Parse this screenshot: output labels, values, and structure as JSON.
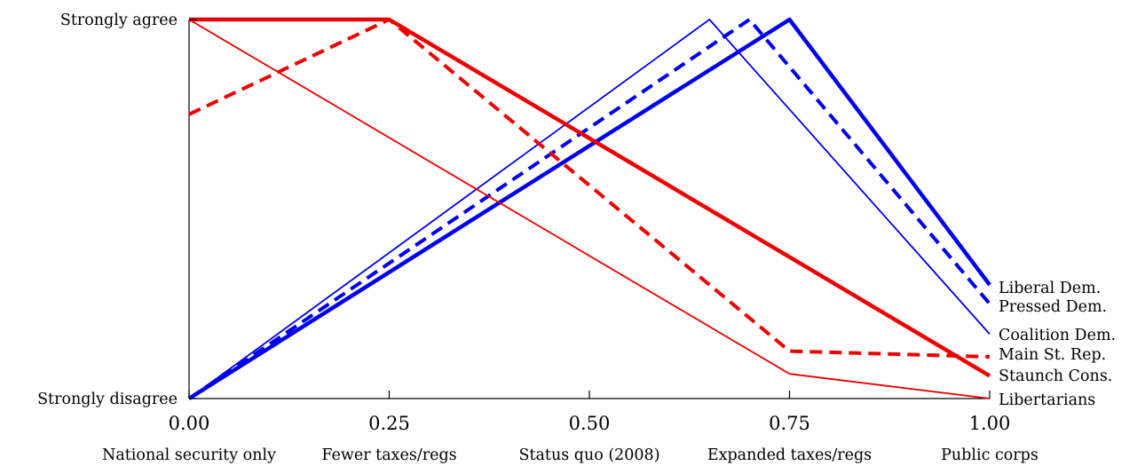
{
  "chart_data": {
    "type": "line",
    "x_ticks": [
      "0.00",
      "0.25",
      "0.50",
      "0.75",
      "1.00"
    ],
    "x_tick_values": [
      0,
      0.25,
      0.5,
      0.75,
      1
    ],
    "x_categories": [
      "National security only",
      "Fewer taxes/regs",
      "Status quo (2008)",
      "Expanded taxes/regs",
      "Public corps"
    ],
    "y_tick_labels": [
      "Strongly disagree",
      "Strongly agree"
    ],
    "y_tick_values": [
      0,
      1
    ],
    "xlim": [
      0,
      1
    ],
    "ylim": [
      0,
      1
    ],
    "grid": false,
    "series": [
      {
        "name": "Liberal Dem.",
        "color": "#0000ee",
        "style": "thick-solid",
        "points": [
          [
            0,
            0
          ],
          [
            0.75,
            1
          ],
          [
            1,
            0.3
          ]
        ]
      },
      {
        "name": "Pressed Dem.",
        "color": "#0000ee",
        "style": "dashed",
        "points": [
          [
            0,
            0
          ],
          [
            0.7,
            1
          ],
          [
            1,
            0.25
          ]
        ]
      },
      {
        "name": "Coalition Dem.",
        "color": "#0000ee",
        "style": "thin-solid",
        "points": [
          [
            0,
            0
          ],
          [
            0.65,
            1
          ],
          [
            1,
            0.17
          ]
        ]
      },
      {
        "name": "Main St. Rep.",
        "color": "#ee0000",
        "style": "dashed",
        "points": [
          [
            0,
            0.75
          ],
          [
            0.25,
            1
          ],
          [
            0.75,
            0.125
          ],
          [
            1,
            0.11
          ]
        ]
      },
      {
        "name": "Staunch Cons.",
        "color": "#ee0000",
        "style": "thick-solid",
        "points": [
          [
            0,
            1
          ],
          [
            0.25,
            1
          ],
          [
            1,
            0.06
          ]
        ]
      },
      {
        "name": "Libertarians",
        "color": "#ee0000",
        "style": "thin-solid",
        "points": [
          [
            0,
            1
          ],
          [
            0.75,
            0.065
          ],
          [
            1,
            0
          ]
        ]
      }
    ]
  }
}
